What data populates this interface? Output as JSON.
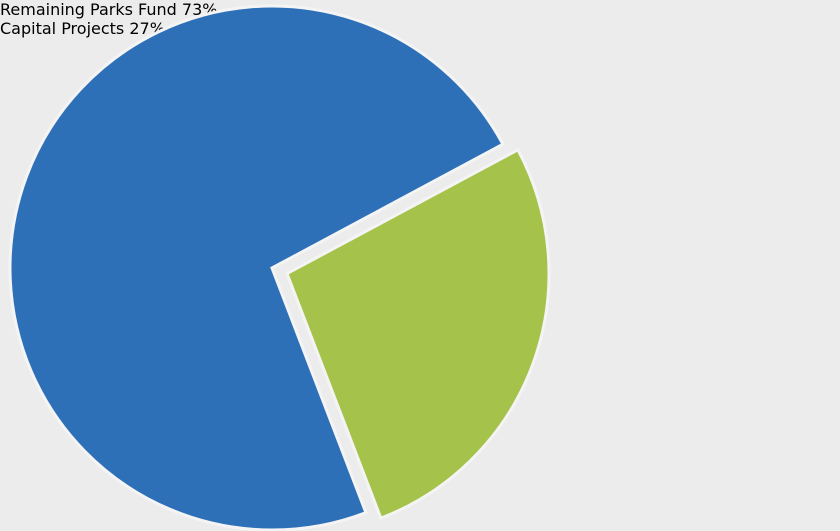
{
  "chart_data": {
    "type": "pie",
    "categories": [
      "Remaining Parks Fund",
      "Capital Projects"
    ],
    "values": [
      73,
      27
    ],
    "value_labels": [
      "73%",
      "27%"
    ],
    "colors": [
      "#2e70b8",
      "#a5c24a"
    ],
    "exploded": [
      false,
      true
    ]
  }
}
